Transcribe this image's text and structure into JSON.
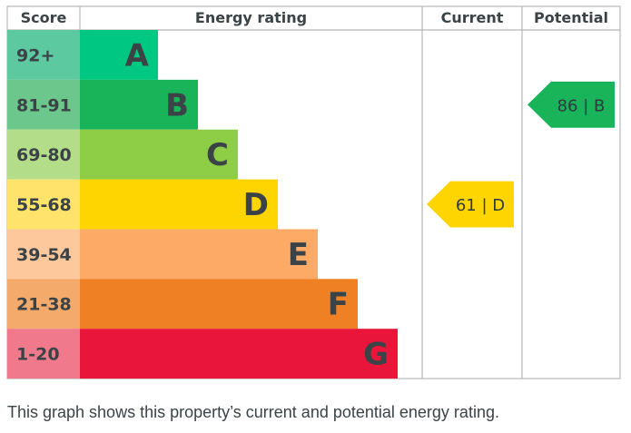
{
  "chart_data": {
    "type": "bar",
    "headers": {
      "score": "Score",
      "rating": "Energy rating",
      "current": "Current",
      "potential": "Potential"
    },
    "bands": [
      {
        "letter": "A",
        "score": "92+",
        "color": "#00c781",
        "score_color": "#5dc9a0"
      },
      {
        "letter": "B",
        "score": "81-91",
        "color": "#19b459",
        "score_color": "#6cc78d"
      },
      {
        "letter": "C",
        "score": "69-80",
        "color": "#8dce46",
        "score_color": "#b4dd8a"
      },
      {
        "letter": "D",
        "score": "55-68",
        "color": "#ffd500",
        "score_color": "#ffe36a"
      },
      {
        "letter": "E",
        "score": "39-54",
        "color": "#fcaa65",
        "score_color": "#fcc89c"
      },
      {
        "letter": "F",
        "score": "21-38",
        "color": "#ef8023",
        "score_color": "#f3aa6b"
      },
      {
        "letter": "G",
        "score": "1-20",
        "color": "#e9153b",
        "score_color": "#f07a8c"
      }
    ],
    "current": {
      "value": 61,
      "band": "D",
      "label": "61 | D",
      "color": "#ffd500"
    },
    "potential": {
      "value": 86,
      "band": "B",
      "label": "86 | B",
      "color": "#19b459"
    }
  },
  "caption": "This graph shows this property’s current and potential energy rating."
}
